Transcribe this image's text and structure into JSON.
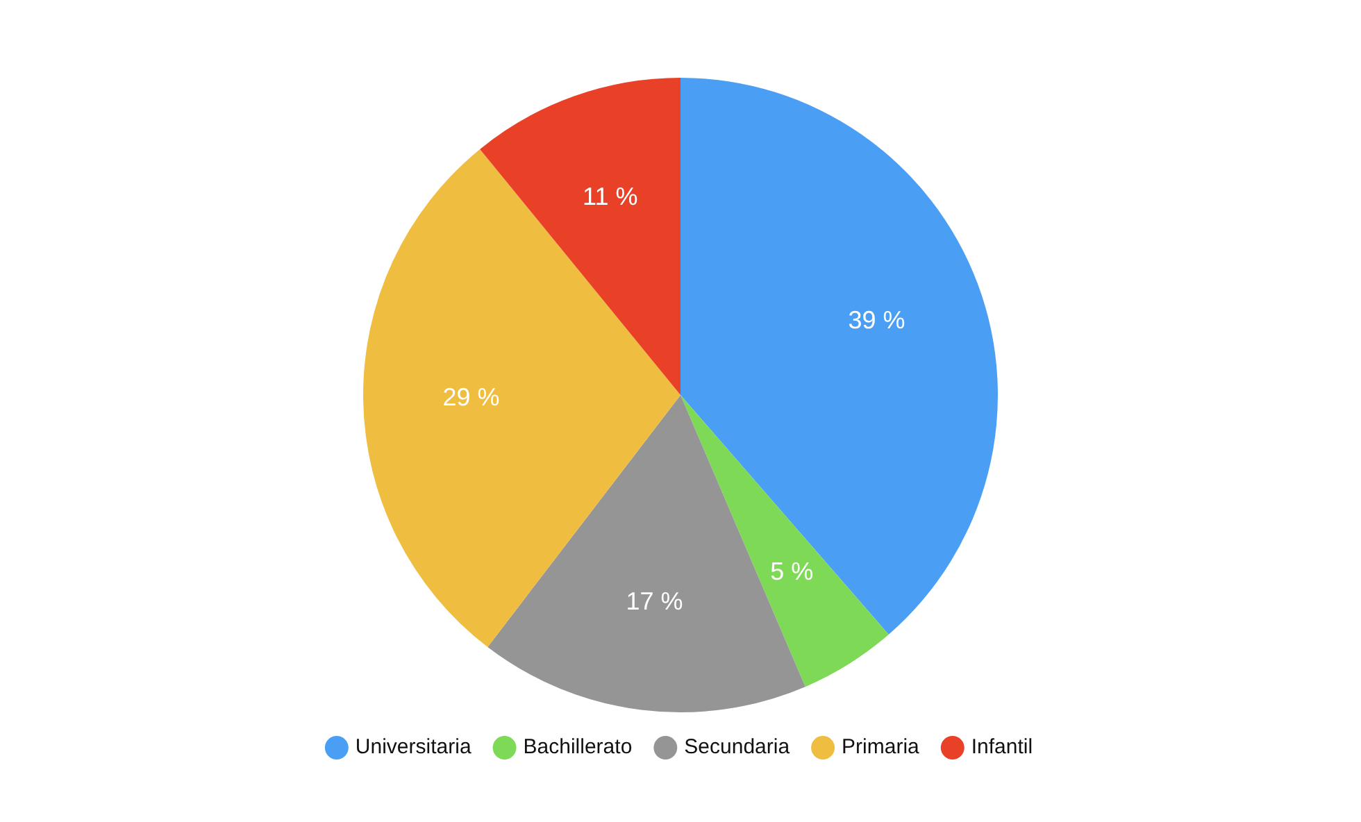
{
  "chart_data": {
    "type": "pie",
    "categories": [
      "Universitaria",
      "Bachillerato",
      "Secundaria",
      "Primaria",
      "Infantil"
    ],
    "values": [
      39,
      5,
      17,
      29,
      11
    ],
    "colors": [
      "#4a9ff5",
      "#7ed957",
      "#959595",
      "#efbd40",
      "#e94128"
    ],
    "value_labels": [
      "39 %",
      "5 %",
      "17 %",
      "29 %",
      "11 %"
    ],
    "legend": "bottom"
  }
}
